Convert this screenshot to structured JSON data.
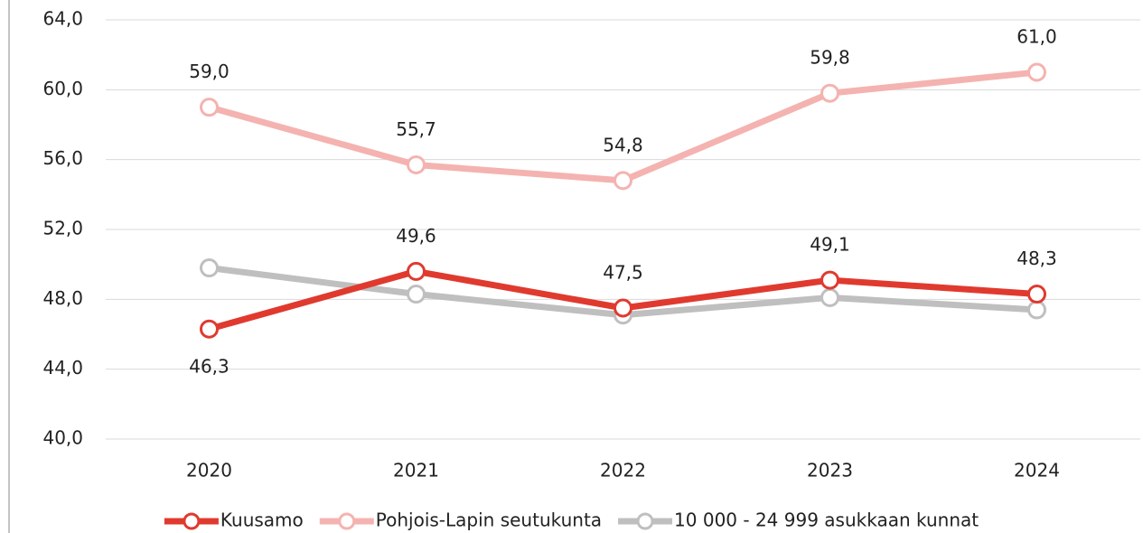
{
  "chart_data": {
    "type": "line",
    "categories": [
      "2020",
      "2021",
      "2022",
      "2023",
      "2024"
    ],
    "series": [
      {
        "name": "Kuusamo",
        "color": "#e03a2f",
        "values": [
          46.3,
          49.6,
          47.5,
          49.1,
          48.3
        ],
        "value_labels": [
          "46,3",
          "49,6",
          "47,5",
          "49,1",
          "48,3"
        ]
      },
      {
        "name": "Pohjois-Lapin seutukunta",
        "color": "#f4b3b0",
        "values": [
          59.0,
          55.7,
          54.8,
          59.8,
          61.0
        ],
        "value_labels": [
          "59,0",
          "55,7",
          "54,8",
          "59,8",
          "61,0"
        ]
      },
      {
        "name": "10 000 - 24 999 asukkaan kunnat",
        "color": "#bfbfbf",
        "values": [
          49.8,
          48.3,
          47.1,
          48.1,
          47.4
        ]
      }
    ],
    "ylim": [
      40,
      64
    ],
    "yticks": [
      {
        "value": 40,
        "label": "40,0"
      },
      {
        "value": 44,
        "label": "44,0"
      },
      {
        "value": 48,
        "label": "48,0"
      },
      {
        "value": 52,
        "label": "52,0"
      },
      {
        "value": 56,
        "label": "56,0"
      },
      {
        "value": 60,
        "label": "60,0"
      },
      {
        "value": 64,
        "label": "64,0"
      }
    ],
    "grid": true,
    "legend": "bottom"
  }
}
